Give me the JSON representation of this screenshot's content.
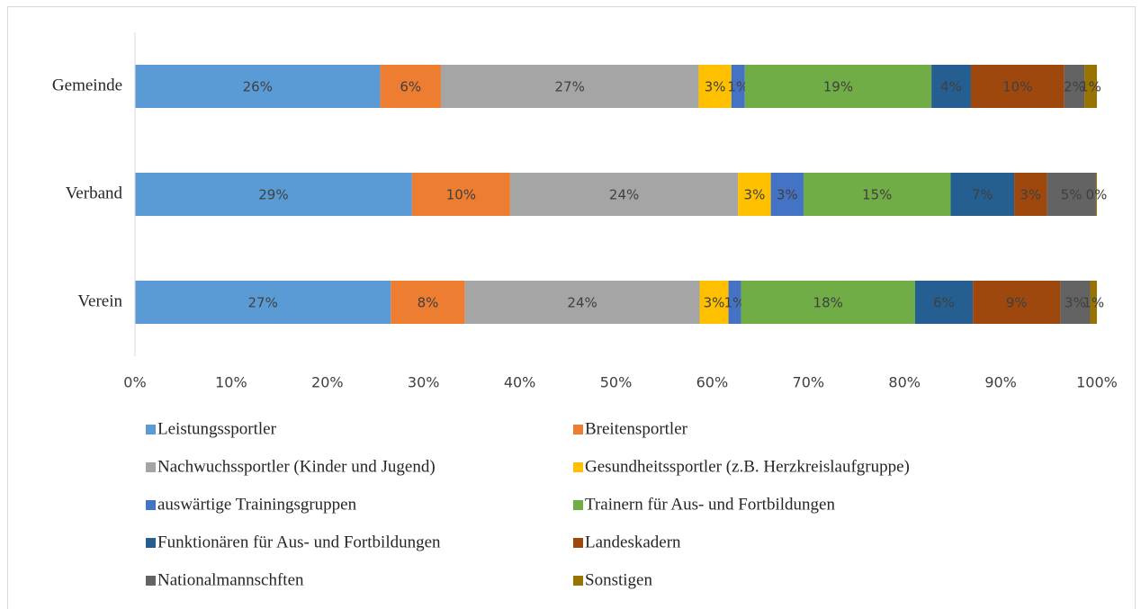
{
  "chart_data": {
    "type": "stacked_bar_horizontal",
    "categories": [
      "Gemeinde",
      "Verband",
      "Verein"
    ],
    "series": [
      {
        "name": "Leistungssportler",
        "color": "#5b9bd5",
        "values": [
          25.5,
          28.8,
          26.6
        ],
        "value_labels": [
          "26%",
          "29%",
          "27%"
        ]
      },
      {
        "name": "Breitensportler",
        "color": "#ed7d31",
        "values": [
          6.3,
          10.2,
          7.7
        ],
        "value_labels": [
          "6%",
          "10%",
          "8%"
        ]
      },
      {
        "name": "Nachwuchssportler (Kinder und Jugend)",
        "color": "#a5a5a5",
        "values": [
          26.8,
          23.7,
          24.4
        ],
        "value_labels": [
          "27%",
          "24%",
          "24%"
        ]
      },
      {
        "name": "Gesundheitssportler (z.B. Herzkreislaufgruppe)",
        "color": "#ffc000",
        "values": [
          3.4,
          3.4,
          3.0
        ],
        "value_labels": [
          "3%",
          "3%",
          "3%"
        ]
      },
      {
        "name": "auswärtige Trainingsgruppen",
        "color": "#4472c4",
        "values": [
          1.4,
          3.4,
          1.3
        ],
        "value_labels": [
          "1%",
          "3%",
          "1%"
        ]
      },
      {
        "name": "Trainern für Aus- und Fortbildungen",
        "color": "#70ad47",
        "values": [
          19.4,
          15.3,
          18.1
        ],
        "value_labels": [
          "19%",
          "15%",
          "18%"
        ]
      },
      {
        "name": "Funktionären für Aus- und Fortbildungen",
        "color": "#255e91",
        "values": [
          4.1,
          6.6,
          6.0
        ],
        "value_labels": [
          "4%",
          "7%",
          "6%"
        ]
      },
      {
        "name": "Landeskadern",
        "color": "#9e480e",
        "values": [
          9.7,
          3.4,
          9.1
        ],
        "value_labels": [
          "10%",
          "3%",
          "9%"
        ]
      },
      {
        "name": "Nationalmannschften",
        "color": "#636363",
        "values": [
          2.1,
          5.1,
          3.1
        ],
        "value_labels": [
          "2%",
          "5%",
          "3%"
        ]
      },
      {
        "name": "Sonstigen",
        "color": "#997300",
        "values": [
          1.3,
          0.1,
          0.7
        ],
        "value_labels": [
          "1%",
          "0%",
          "1%"
        ]
      }
    ],
    "xlim": [
      0,
      100
    ],
    "xticks": [
      {
        "value": 0,
        "label": "0%"
      },
      {
        "value": 10,
        "label": "10%"
      },
      {
        "value": 20,
        "label": "20%"
      },
      {
        "value": 30,
        "label": "30%"
      },
      {
        "value": 40,
        "label": "40%"
      },
      {
        "value": 50,
        "label": "50%"
      },
      {
        "value": 60,
        "label": "60%"
      },
      {
        "value": 70,
        "label": "70%"
      },
      {
        "value": 80,
        "label": "80%"
      },
      {
        "value": 90,
        "label": "90%"
      },
      {
        "value": 100,
        "label": "100%"
      }
    ],
    "legend": "bottom"
  }
}
